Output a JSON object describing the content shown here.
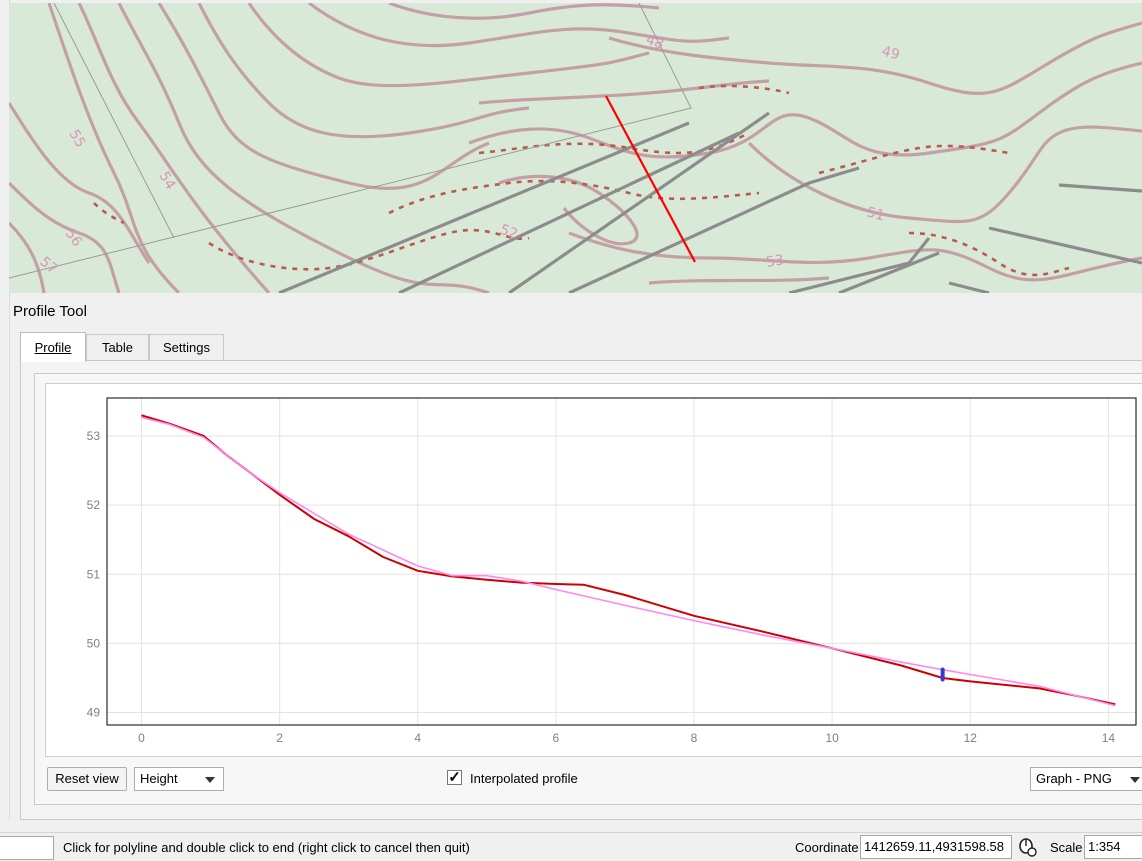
{
  "dock": {
    "title": "Profile Tool"
  },
  "tabs": [
    {
      "label": "Profile",
      "active": true
    },
    {
      "label": "Table",
      "active": false
    },
    {
      "label": "Settings",
      "active": false
    }
  ],
  "map": {
    "contour_labels": [
      "48",
      "49",
      "51",
      "52",
      "53",
      "54",
      "55",
      "56",
      "57"
    ],
    "colors": {
      "background": "#d9e9d8",
      "contour": "#c4a0a6",
      "dashed": "#b95a4f",
      "road": "#8c8c8c",
      "profile_line": "#ff0000"
    }
  },
  "controls": {
    "reset_view": "Reset view",
    "mode": "Height",
    "interpolated_label": "Interpolated profile",
    "interpolated_checked": true,
    "export_format": "Graph - PNG"
  },
  "statusbar": {
    "message": "Click for polyline and double click to end (right click to cancel then quit)",
    "coordinate_label": "Coordinate",
    "coordinate_value": "1412659.11,4931598.58",
    "scale_label": "Scale",
    "scale_value": "1:354"
  },
  "chart_data": {
    "type": "line",
    "xlim": [
      -0.5,
      14.4
    ],
    "ylim": [
      48.82,
      53.55
    ],
    "xticks": [
      0,
      2,
      4,
      6,
      8,
      10,
      12,
      14
    ],
    "yticks": [
      49,
      50,
      51,
      52,
      53
    ],
    "grid": true,
    "series": [
      {
        "color": "#cc0000",
        "x": [
          0,
          0.4,
          0.9,
          1.2,
          1.6,
          2.0,
          2.5,
          3.0,
          3.5,
          4.0,
          4.5,
          5.0,
          5.5,
          6.0,
          6.4,
          7.0,
          8.0,
          9.0,
          10.0,
          11.0,
          11.6,
          12.0,
          13.0,
          13.5,
          14.1
        ],
        "y": [
          53.3,
          53.18,
          53.0,
          52.75,
          52.45,
          52.15,
          51.8,
          51.55,
          51.25,
          51.05,
          50.97,
          50.92,
          50.88,
          50.86,
          50.85,
          50.7,
          50.4,
          50.17,
          49.93,
          49.68,
          49.5,
          49.45,
          49.35,
          49.25,
          49.12
        ]
      },
      {
        "color": "#ff88ee",
        "x": [
          0,
          0.4,
          0.9,
          1.2,
          1.6,
          2.0,
          2.5,
          3.0,
          3.5,
          4.0,
          4.5,
          5.0,
          5.5,
          6.0,
          7.0,
          8.0,
          9.0,
          10.0,
          11.0,
          11.6,
          12.0,
          13.0,
          14.1
        ],
        "y": [
          53.27,
          53.17,
          52.98,
          52.75,
          52.45,
          52.18,
          51.88,
          51.58,
          51.35,
          51.12,
          50.98,
          50.98,
          50.9,
          50.78,
          50.55,
          50.33,
          50.12,
          49.93,
          49.73,
          49.62,
          49.55,
          49.38,
          49.1
        ]
      }
    ],
    "marker": {
      "x": 11.6,
      "y": 49.55,
      "color": "#3a3ad0"
    }
  }
}
